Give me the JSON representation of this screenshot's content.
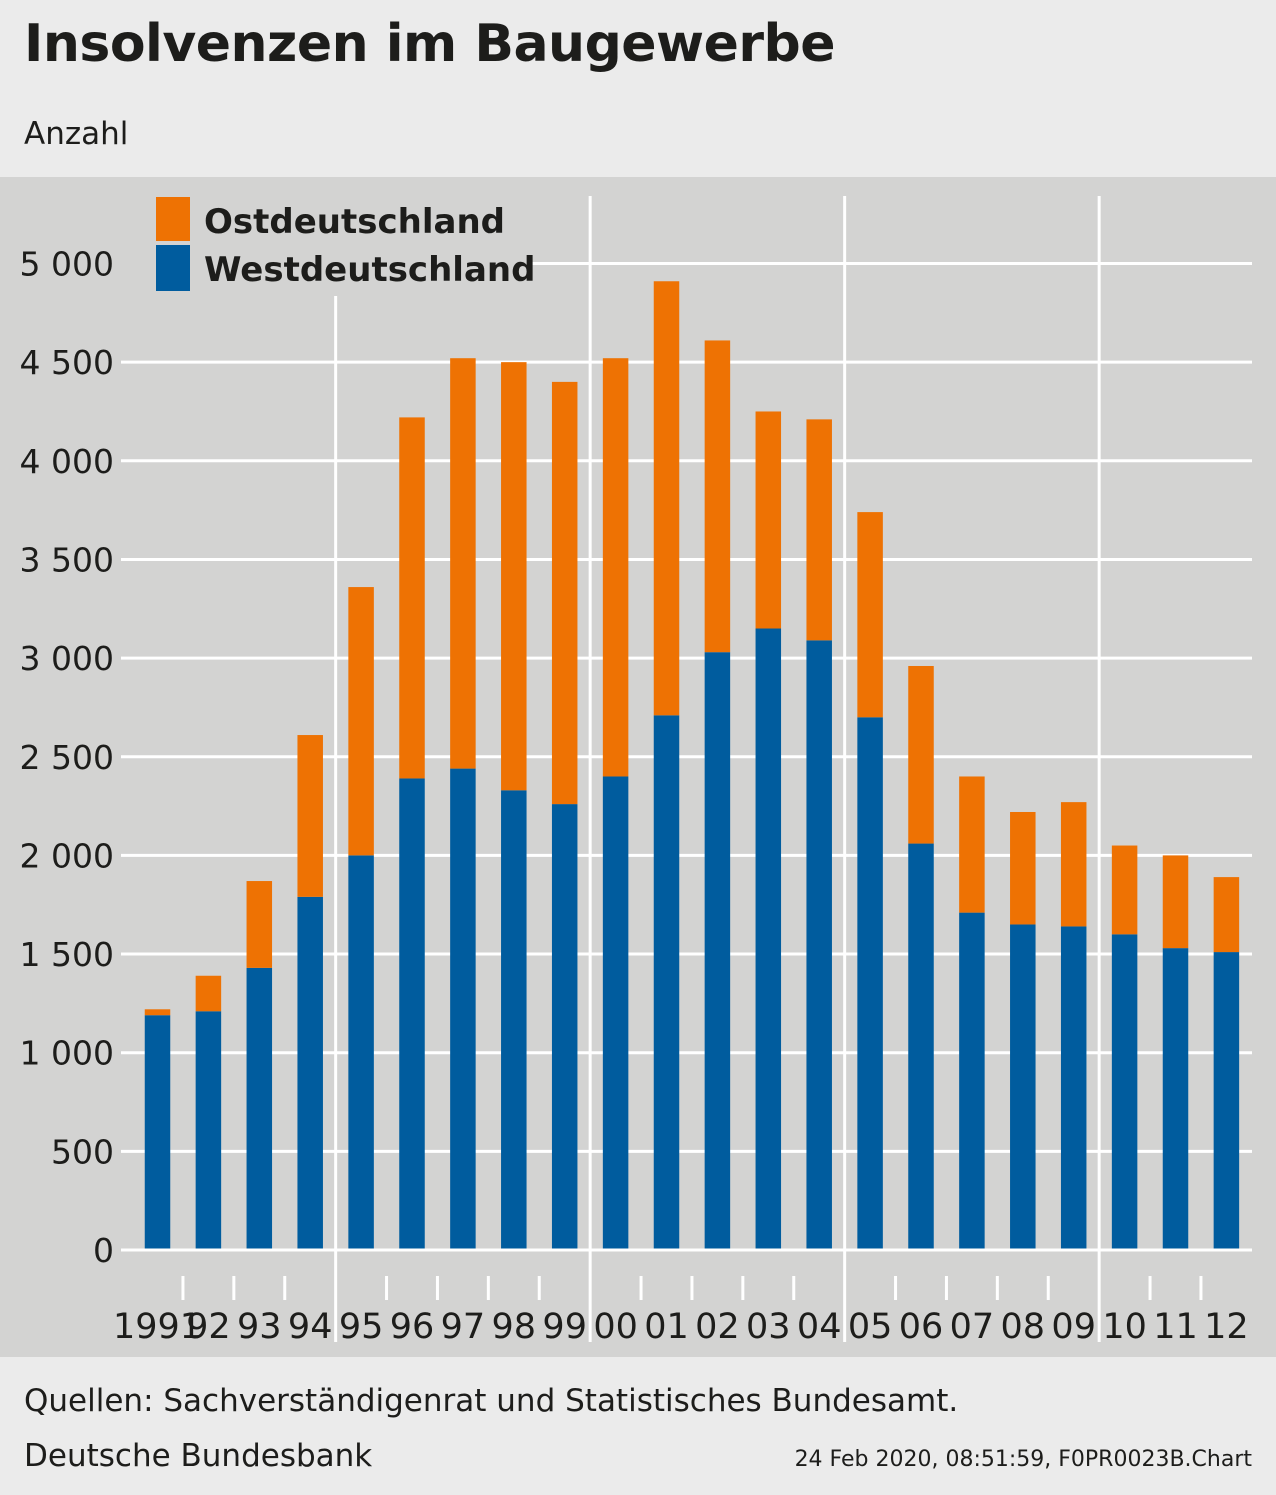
{
  "header": {
    "title": "Insolvenzen im Baugewerbe",
    "subtitle": "Anzahl"
  },
  "footer": {
    "source": "Quellen: Sachverständigenrat und Statistisches Bundesamt.",
    "publisher": "Deutsche Bundesbank",
    "stamp": "24 Feb 2020, 08:51:59, F0PR0023B.Chart"
  },
  "colors": {
    "ost": "#ee7203",
    "west": "#005c9e",
    "plot_bg": "#d3d3d2",
    "grid": "#ffffff"
  },
  "chart_data": {
    "type": "bar",
    "stacked": true,
    "title": "Insolvenzen im Baugewerbe",
    "ylabel": "Anzahl",
    "xlabel": "",
    "categories": [
      "1991",
      "92",
      "93",
      "94",
      "95",
      "96",
      "97",
      "98",
      "99",
      "00",
      "01",
      "02",
      "03",
      "04",
      "05",
      "06",
      "07",
      "08",
      "09",
      "10",
      "11",
      "12"
    ],
    "series": [
      {
        "name": "Westdeutschland",
        "values": [
          1190,
          1210,
          1430,
          1790,
          2000,
          2390,
          2440,
          2330,
          2260,
          2400,
          2710,
          3030,
          3150,
          3090,
          2700,
          2060,
          1710,
          1650,
          1640,
          1600,
          1530,
          1510
        ]
      },
      {
        "name": "Ostdeutschland",
        "values": [
          30,
          180,
          440,
          820,
          1360,
          1830,
          2080,
          2170,
          2140,
          2120,
          2200,
          1580,
          1100,
          1120,
          1040,
          900,
          690,
          570,
          630,
          450,
          470,
          380
        ]
      }
    ],
    "yticks": [
      0,
      500,
      1000,
      1500,
      2000,
      2500,
      3000,
      3500,
      4000,
      4500,
      5000
    ],
    "ytick_labels": [
      "0",
      "500",
      "1 000",
      "1 500",
      "2 000",
      "2 500",
      "3 000",
      "3 500",
      "4 000",
      "4 500",
      "5 000"
    ],
    "ylim": [
      0,
      5400
    ],
    "grid": true,
    "legend": {
      "position": "top-left",
      "entries": [
        "Ostdeutschland",
        "Westdeutschland"
      ]
    }
  }
}
